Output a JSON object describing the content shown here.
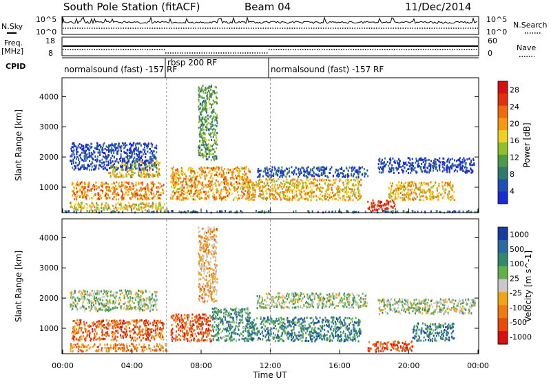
{
  "header": {
    "station": "South Pole Station (fitACF)",
    "beam": "Beam 04",
    "date": "11/Dec/2014"
  },
  "panels": {
    "nsky": {
      "left_label": "N.Sky",
      "left_ticks": [
        "10^5",
        "10^0"
      ],
      "right_ticks": [
        "10^5",
        "10^0"
      ],
      "right_label": "N.Search"
    },
    "freq": {
      "left_label_1": "Freq.",
      "left_label_2": "[MHz]",
      "left_ticks": [
        "18",
        "8"
      ],
      "right_ticks": [
        "60",
        "0"
      ],
      "right_label": "Nave"
    },
    "cpid": {
      "label": "CPID",
      "segments": [
        "normalsound (fast) -157 RF",
        "rbsp 200 RF",
        "normalsound (fast) -157 RF"
      ]
    }
  },
  "chart_data": [
    {
      "type": "heatmap",
      "name": "power",
      "ylabel": "Slant Range [km]",
      "y_ticks": [
        1000,
        2000,
        3000,
        4000
      ],
      "ylim": [
        180,
        4600
      ],
      "x_ticks": [
        "00:00",
        "04:00",
        "08:00",
        "12:00",
        "16:00",
        "20:00",
        "00:00"
      ],
      "xlim_hours": [
        0,
        24
      ],
      "colorbar": {
        "label": "Power [dB]",
        "ticks": [
          "4",
          "8",
          "12",
          "16",
          "20",
          "24",
          "28"
        ],
        "colors": [
          "#1a2bd6",
          "#1f4fb0",
          "#2f7a6a",
          "#4e9a4a",
          "#8fbf2a",
          "#f0d020",
          "#f59a10",
          "#ee6a0c",
          "#e4300a",
          "#d81010"
        ]
      },
      "bands": [
        {
          "t0": 0.0,
          "t1": 24.0,
          "r0": 190,
          "r1": 250,
          "level": 0.2
        },
        {
          "t0": 0.4,
          "t1": 6.0,
          "r0": 260,
          "r1": 520,
          "level": 0.55
        },
        {
          "t0": 0.5,
          "t1": 5.8,
          "r0": 620,
          "r1": 1200,
          "level": 0.7
        },
        {
          "t0": 2.6,
          "t1": 5.6,
          "r0": 1350,
          "r1": 1900,
          "level": 0.55
        },
        {
          "t0": 0.4,
          "t1": 5.4,
          "r0": 1600,
          "r1": 2500,
          "level": 0.1
        },
        {
          "t0": 6.2,
          "t1": 10.8,
          "r0": 600,
          "r1": 1700,
          "level": 0.65
        },
        {
          "t0": 7.8,
          "t1": 8.9,
          "r0": 1900,
          "r1": 4400,
          "level": 0.35
        },
        {
          "t0": 10.6,
          "t1": 17.2,
          "r0": 600,
          "r1": 1300,
          "level": 0.6
        },
        {
          "t0": 11.2,
          "t1": 17.6,
          "r0": 1350,
          "r1": 1700,
          "level": 0.12
        },
        {
          "t0": 17.6,
          "t1": 19.2,
          "r0": 250,
          "r1": 600,
          "level": 0.9
        },
        {
          "t0": 18.8,
          "t1": 22.6,
          "r0": 600,
          "r1": 1200,
          "level": 0.6
        },
        {
          "t0": 18.2,
          "t1": 23.8,
          "r0": 1500,
          "r1": 2000,
          "level": 0.1
        }
      ]
    },
    {
      "type": "heatmap",
      "name": "velocity",
      "ylabel": "Slant Range [km]",
      "y_ticks": [
        1000,
        2000,
        3000,
        4000
      ],
      "ylim": [
        180,
        4600
      ],
      "x_ticks": [
        "00:00",
        "04:00",
        "08:00",
        "12:00",
        "16:00",
        "20:00",
        "00:00"
      ],
      "xlim_hours": [
        0,
        24
      ],
      "xlabel": "Time UT",
      "colorbar": {
        "label": "Velocity [m s^-1]",
        "ticks": [
          "1000",
          "500",
          "100",
          "25",
          "-25",
          "-100",
          "-500",
          "-1000"
        ],
        "colors": [
          "#1a3da0",
          "#2a6aa0",
          "#2f8a6a",
          "#62b04c",
          "#c9c9c9",
          "#f0a418",
          "#f07a0e",
          "#e84a0c",
          "#d81010"
        ]
      },
      "bands": [
        {
          "t0": 0.4,
          "t1": 6.0,
          "r0": 260,
          "r1": 520,
          "level": 0.72
        },
        {
          "t0": 0.5,
          "t1": 5.8,
          "r0": 620,
          "r1": 1300,
          "level": 0.78
        },
        {
          "t0": 0.4,
          "t1": 5.4,
          "r0": 1600,
          "r1": 2300,
          "level": 0.45
        },
        {
          "t0": 6.2,
          "t1": 8.6,
          "r0": 600,
          "r1": 1500,
          "level": 0.82
        },
        {
          "t0": 8.6,
          "t1": 10.8,
          "r0": 600,
          "r1": 1700,
          "level": 0.3
        },
        {
          "t0": 7.8,
          "t1": 8.9,
          "r0": 1900,
          "r1": 4400,
          "level": 0.62
        },
        {
          "t0": 10.6,
          "t1": 17.2,
          "r0": 600,
          "r1": 1400,
          "level": 0.25
        },
        {
          "t0": 11.2,
          "t1": 17.6,
          "r0": 1700,
          "r1": 2200,
          "level": 0.45
        },
        {
          "t0": 17.6,
          "t1": 20.2,
          "r0": 250,
          "r1": 600,
          "level": 0.85
        },
        {
          "t0": 20.2,
          "t1": 22.6,
          "r0": 600,
          "r1": 1200,
          "level": 0.22
        },
        {
          "t0": 18.2,
          "t1": 23.8,
          "r0": 1500,
          "r1": 2000,
          "level": 0.45
        }
      ]
    }
  ]
}
